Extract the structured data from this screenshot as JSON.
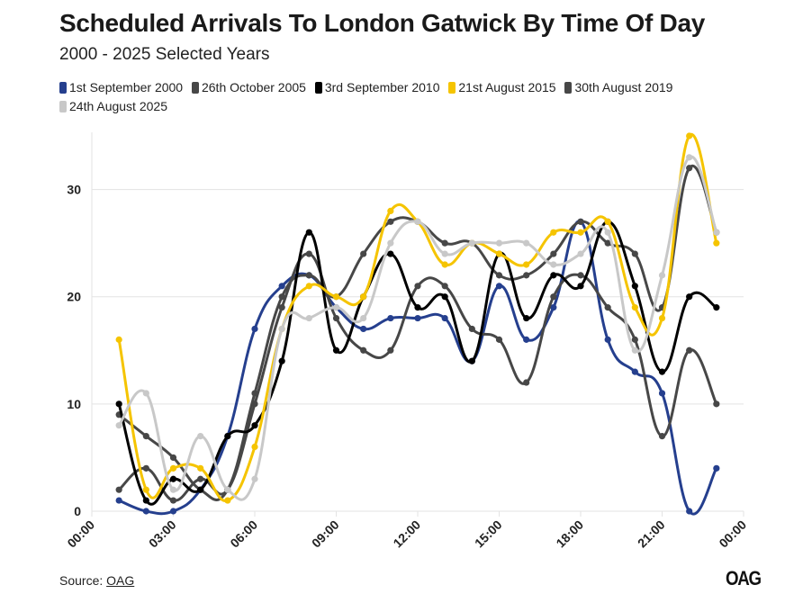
{
  "header": {
    "title": "Scheduled Arrivals To London Gatwick By Time Of Day",
    "subtitle": "2000 - 2025 Selected Years"
  },
  "footer": {
    "source_prefix": "Source: ",
    "source_link": "OAG",
    "logo": "OAG"
  },
  "chart_data": {
    "type": "line",
    "title": "Scheduled Arrivals To London Gatwick By Time Of Day",
    "subtitle": "2000 - 2025 Selected Years",
    "xlabel": "",
    "ylabel": "",
    "x_unit": "hour of day",
    "x": [
      1,
      2,
      3,
      4,
      5,
      6,
      7,
      8,
      9,
      10,
      11,
      12,
      13,
      14,
      15,
      16,
      17,
      18,
      19,
      20,
      21,
      22,
      23
    ],
    "xlim": [
      0,
      24
    ],
    "x_ticks": [
      0,
      3,
      6,
      9,
      12,
      15,
      18,
      21,
      24
    ],
    "x_tick_labels": [
      "00:00",
      "03:00",
      "06:00",
      "09:00",
      "12:00",
      "15:00",
      "18:00",
      "21:00",
      "00:00"
    ],
    "ylim": [
      0,
      35
    ],
    "y_ticks": [
      0,
      10,
      20,
      30
    ],
    "y_tick_labels": [
      "0",
      "10",
      "20",
      "30"
    ],
    "grid": "horizontal",
    "legend_position": "top-left",
    "smooth": true,
    "series": [
      {
        "name": "1st September 2000",
        "color": "#253f8e",
        "values": [
          1,
          0,
          0,
          2,
          7,
          17,
          21,
          22,
          19,
          17,
          18,
          18,
          18,
          14,
          21,
          16,
          19,
          27,
          16,
          13,
          11,
          0,
          4
        ]
      },
      {
        "name": "26th October 2005",
        "color": "#474747",
        "values": [
          9,
          7,
          5,
          2,
          2,
          11,
          20,
          22,
          20,
          24,
          27,
          27,
          25,
          25,
          22,
          22,
          24,
          27,
          25,
          24,
          19,
          32,
          26
        ]
      },
      {
        "name": "3rd September 2010",
        "color": "#000000",
        "values": [
          10,
          1,
          3,
          2,
          7,
          8,
          14,
          26,
          15,
          20,
          24,
          19,
          20,
          14,
          24,
          18,
          22,
          21,
          27,
          21,
          13,
          20,
          19
        ]
      },
      {
        "name": "21st August 2015",
        "color": "#f5c400",
        "values": [
          16,
          2,
          4,
          4,
          1,
          6,
          17,
          21,
          20,
          20,
          28,
          27,
          23,
          25,
          24,
          23,
          26,
          26,
          27,
          19,
          18,
          35,
          25
        ]
      },
      {
        "name": "30th August 2019",
        "color": "#474747",
        "values": [
          2,
          4,
          1,
          3,
          2,
          10,
          19,
          24,
          18,
          15,
          15,
          21,
          21,
          17,
          16,
          12,
          20,
          22,
          19,
          16,
          7,
          15,
          10
        ]
      },
      {
        "name": "24th August 2025",
        "color": "#c8c8c8",
        "values": [
          8,
          11,
          2,
          7,
          2,
          3,
          17,
          18,
          19,
          18,
          25,
          27,
          24,
          25,
          25,
          25,
          23,
          24,
          26,
          15,
          22,
          33,
          26
        ]
      }
    ]
  }
}
